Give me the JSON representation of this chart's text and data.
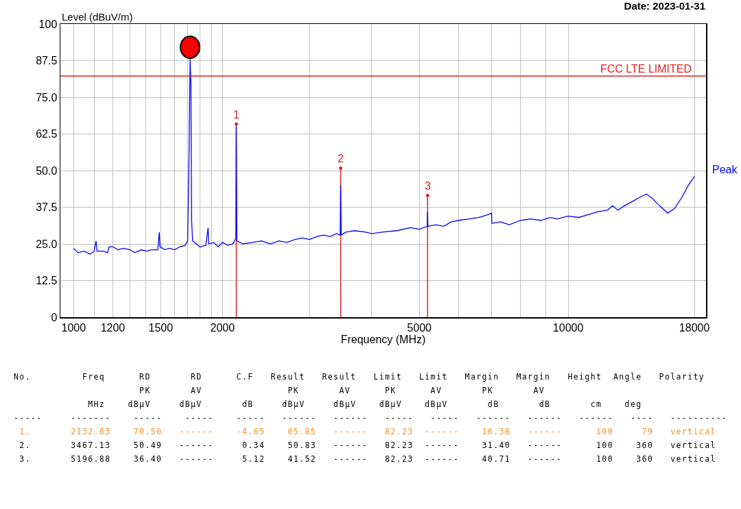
{
  "chart_data": {
    "type": "line",
    "ylabel": "Level (dBuV/m)",
    "xlabel": "Frequency (MHz)",
    "log": "x",
    "grid": true,
    "legend": false,
    "marker": "none",
    "line_style": "solid",
    "xlim": [
      940,
      19000
    ],
    "xticks": [
      1000,
      {
        "value": 1100,
        "label": null
      },
      1200,
      {
        "value": 1300,
        "label": null
      },
      {
        "value": 1400,
        "label": null
      },
      1500,
      {
        "value": 1600,
        "label": null
      },
      {
        "value": 1700,
        "label": null
      },
      {
        "value": 1800,
        "label": null
      },
      {
        "value": 1900,
        "label": null
      },
      2000,
      {
        "value": 3000,
        "label": null
      },
      {
        "value": 4000,
        "label": null
      },
      5000,
      {
        "value": 6000,
        "label": null
      },
      {
        "value": 7000,
        "label": null
      },
      {
        "value": 8000,
        "label": null
      },
      {
        "value": 9000,
        "label": null
      },
      10000,
      18000
    ],
    "ylim": [
      0,
      100
    ],
    "yticks": [
      0,
      12.5,
      {
        "value": 25,
        "label": "25.0"
      },
      37.5,
      {
        "value": 50,
        "label": "50.0"
      },
      62.5,
      {
        "value": 75,
        "label": "75.0"
      },
      87.5,
      100
    ],
    "series": [
      {
        "name": "Peak",
        "color": "#0000ff",
        "x": [
          1000,
          1020,
          1050,
          1080,
          1100,
          1110,
          1115,
          1150,
          1170,
          1180,
          1200,
          1230,
          1260,
          1300,
          1330,
          1370,
          1400,
          1440,
          1480,
          1490,
          1495,
          1530,
          1560,
          1600,
          1640,
          1680,
          1700,
          1712,
          1720,
          1726,
          1732,
          1740,
          1770,
          1800,
          1850,
          1870,
          1875,
          1920,
          1960,
          2000,
          2050,
          2100,
          2128,
          2132,
          2138,
          2200,
          2300,
          2400,
          2500,
          2600,
          2700,
          2800,
          2900,
          3000,
          3100,
          3200,
          3300,
          3400,
          3460,
          3467,
          3475,
          3550,
          3700,
          3900,
          4000,
          4200,
          4500,
          4800,
          5000,
          5190,
          5196,
          5205,
          5400,
          5600,
          5800,
          6000,
          6300,
          6600,
          6900,
          7000,
          7010,
          7300,
          7600,
          8000,
          8400,
          8800,
          9200,
          9500,
          10000,
          10500,
          11000,
          11500,
          12000,
          12300,
          12600,
          13000,
          13500,
          14000,
          14400,
          14800,
          15300,
          15900,
          16400,
          17000,
          17500,
          18000
        ],
        "values": [
          23.5,
          22,
          22.5,
          21.5,
          22.5,
          26,
          22.5,
          22.5,
          22,
          24,
          24,
          23,
          23.5,
          23,
          22,
          23,
          22.5,
          23,
          23,
          29,
          24,
          23,
          23.5,
          23,
          24,
          24.5,
          26,
          57,
          88,
          80,
          33,
          26,
          25,
          24,
          24.5,
          30.5,
          25,
          25.5,
          24,
          25.5,
          24.5,
          25,
          27,
          65,
          26,
          25,
          25.5,
          26,
          25,
          26,
          25.5,
          26.5,
          27,
          26.5,
          27.5,
          28,
          27.5,
          28.5,
          28,
          45,
          28,
          29,
          29.5,
          29,
          28.5,
          29,
          29.5,
          30.5,
          30,
          31,
          36,
          31,
          31.5,
          31,
          32.5,
          33,
          33.5,
          34,
          35,
          35.5,
          32,
          32.5,
          31.5,
          33,
          33.5,
          33,
          34,
          33.5,
          34.5,
          34,
          35,
          36,
          36.5,
          38,
          36.5,
          38,
          39.5,
          41,
          42,
          40.5,
          38,
          35.5,
          37,
          41,
          45,
          48
        ]
      },
      {
        "type": "lollipop",
        "color": "#e02020",
        "x": [
          2132.63,
          3467.13,
          5196.88
        ],
        "values": [
          65.85,
          50.83,
          41.52
        ]
      }
    ],
    "ref_lines": [
      {
        "axis": "y",
        "value": 82.23,
        "label": "FCC LTE LIMITED",
        "color": "#e02020"
      }
    ],
    "annotations": [
      "Date: 2023-01-31",
      {
        "text": "1",
        "x": 2132.63,
        "y": 65.85
      },
      {
        "text": "2",
        "x": 3467.13,
        "y": 50.83
      },
      {
        "text": "3",
        "x": 5196.88,
        "y": 41.52
      },
      "No.         Freq      RD       RD      C.F   Result   Result   Limit   Limit   Margin   Margin   Height  Angle   Polarity",
      "                      PK       AV               PK       AV      PK      AV       PK       AV",
      "             MHz    dBμV     dBμV       dB     dBμV     dBμV    dBμV    dBμV       dB       dB       cm    deg",
      "-----     -------    -----    -----    -----   ------   ------   -----   -----   ------   ------   ------   ----   ----------",
      " 1.       2132.63    70.50   ------    -4.65    65.85   ------   82.23  ------    16.38   ------      100     79   vertical",
      " 2.       3467.13    50.49   ------     0.34    50.83   ------   82.23  ------    31.40   ------      100    360   vertical",
      " 3.       5196.88    36.40   ------     5.12    41.52   ------   82.23  ------    40.71   ------      100    360   vertical"
    ]
  }
}
